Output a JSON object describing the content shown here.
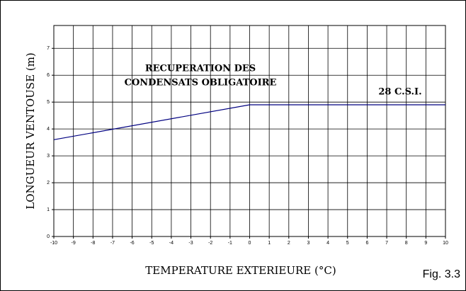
{
  "chart_data": {
    "type": "line",
    "x": [
      -10,
      0,
      10
    ],
    "series": [
      {
        "color": "#000080",
        "values": [
          3.6,
          4.9,
          4.9
        ]
      }
    ],
    "xlim": [
      -10,
      10
    ],
    "xticks": [
      -10,
      -9,
      -8,
      -7,
      -6,
      -5,
      -4,
      -3,
      -2,
      -1,
      0,
      1,
      2,
      3,
      4,
      5,
      6,
      7,
      8,
      9,
      10
    ],
    "ylim": [
      0,
      7.85
    ],
    "yticks": [
      0,
      1,
      2,
      3,
      4,
      5,
      6,
      7
    ],
    "grid": true,
    "ylabel": "LONGUEUR VENTOUSE (m)",
    "xlabel": "TEMPERATURE EXTERIEURE (°C)",
    "annotations": [
      "RECUPERATION DES",
      "CONDENSATS OBLIGATOIRE",
      "28 C.S.I."
    ],
    "figure_label": "Fig. 3.3"
  }
}
